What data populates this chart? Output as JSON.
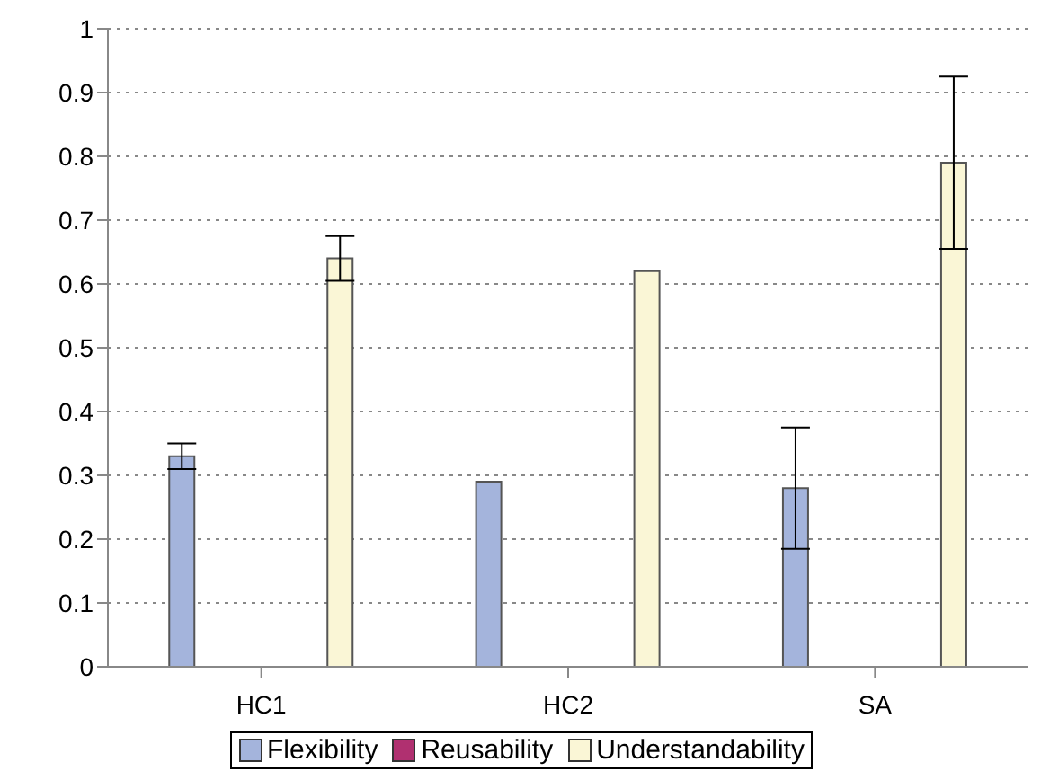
{
  "chart_data": {
    "type": "bar",
    "categories": [
      "HC1",
      "HC2",
      "SA"
    ],
    "series": [
      {
        "name": "Flexibility",
        "color": "#a4b4dc",
        "values": [
          0.33,
          0.29,
          0.28
        ],
        "errors": [
          0.02,
          null,
          0.095
        ]
      },
      {
        "name": "Reusability",
        "color": "#b03070",
        "values": [
          0,
          0,
          0
        ]
      },
      {
        "name": "Understandability",
        "color": "#faf6d6",
        "values": [
          0.64,
          0.62,
          0.79
        ],
        "errors": [
          0.035,
          null,
          0.135
        ]
      }
    ],
    "ylim": [
      0,
      1
    ],
    "yticks": [
      0,
      0.1,
      0.2,
      0.3,
      0.4,
      0.5,
      0.6,
      0.7,
      0.8,
      0.9,
      1
    ],
    "grid": "y",
    "legend": "bottom"
  }
}
